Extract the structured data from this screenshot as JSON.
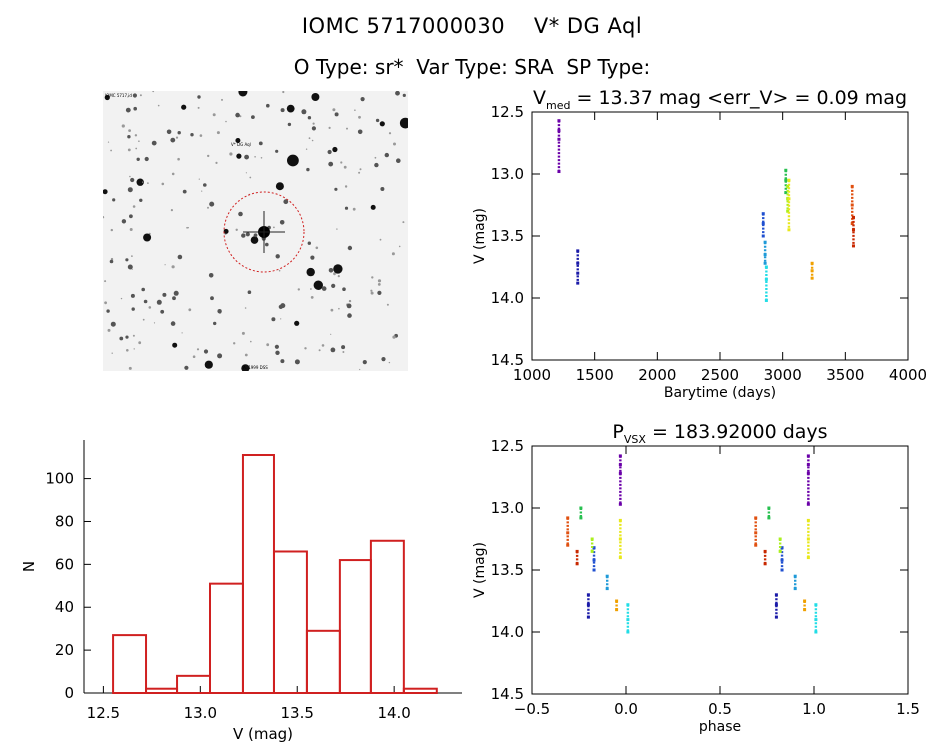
{
  "header": {
    "line1": "IOMC 5717000030    V* DG Aql",
    "line2": "O Type: sr*  Var Type: SRA  SP Type:"
  },
  "finder": {
    "label_tl": "IOMC 5717 id",
    "label_target": "V* DG Aql",
    "label_bottom": "A. 1999 DSS"
  },
  "chart_data": [
    {
      "type": "scatter",
      "title_main": "V",
      "title_sub": "med",
      "title_rest": " = 13.37 mag <err_V> = 0.09 mag",
      "xlabel": "Barytime (days)",
      "ylabel": "V (mag)",
      "xlim": [
        1000,
        4000
      ],
      "ylim": [
        14.5,
        12.5
      ],
      "x_ticks": [
        "1000",
        "1500",
        "2000",
        "2500",
        "3000",
        "3500",
        "4000"
      ],
      "y_ticks": [
        "12.5",
        "13.0",
        "13.5",
        "14.0",
        "14.5"
      ],
      "series": [
        {
          "color": "#6a00a8",
          "x": 1215,
          "y": [
            12.57,
            12.65,
            12.72,
            12.98
          ]
        },
        {
          "color": "#1a1aa8",
          "x": 1365,
          "y": [
            13.62,
            13.72,
            13.8,
            13.88
          ]
        },
        {
          "color": "#2050d0",
          "x": 2845,
          "y": [
            13.32,
            13.4,
            13.5
          ]
        },
        {
          "color": "#1e9ad8",
          "x": 2860,
          "y": [
            13.55,
            13.65,
            13.72
          ]
        },
        {
          "color": "#22dde6",
          "x": 2870,
          "y": [
            13.75,
            13.85,
            14.02
          ]
        },
        {
          "color": "#28c050",
          "x": 3025,
          "y": [
            12.97,
            13.05,
            13.15
          ]
        },
        {
          "color": "#aaf01e",
          "x": 3040,
          "y": [
            13.1,
            13.2,
            13.3
          ]
        },
        {
          "color": "#e8e81a",
          "x": 3050,
          "y": [
            13.05,
            13.2,
            13.45
          ]
        },
        {
          "color": "#f0a000",
          "x": 3235,
          "y": [
            13.72,
            13.78,
            13.84
          ]
        },
        {
          "color": "#e05010",
          "x": 3555,
          "y": [
            13.1,
            13.25,
            13.4
          ]
        },
        {
          "color": "#c82800",
          "x": 3565,
          "y": [
            13.35,
            13.45,
            13.58
          ]
        }
      ]
    },
    {
      "type": "bar",
      "title": "",
      "xlabel": "V (mag)",
      "ylabel": "N",
      "xlim": [
        12.4,
        14.35
      ],
      "ylim": [
        0,
        118
      ],
      "x_ticks": [
        "12.5",
        "13.0",
        "13.5",
        "14.0"
      ],
      "y_ticks": [
        "0",
        "20",
        "40",
        "60",
        "80",
        "100"
      ],
      "bin_edges": [
        12.55,
        12.72,
        12.88,
        13.05,
        13.22,
        13.38,
        13.55,
        13.72,
        13.88,
        14.05,
        14.22
      ],
      "values": [
        27,
        2,
        8,
        51,
        111,
        66,
        29,
        62,
        71,
        2
      ],
      "color": "#d02020"
    },
    {
      "type": "scatter",
      "title_main": "P",
      "title_sub": "VSX",
      "title_rest": " = 183.92000 days",
      "xlabel": "phase",
      "ylabel": "V (mag)",
      "xlim": [
        -0.5,
        1.5
      ],
      "ylim": [
        14.5,
        12.5
      ],
      "x_ticks": [
        "−0.5",
        "0.0",
        "0.5",
        "1.0",
        "1.5"
      ],
      "y_ticks": [
        "12.5",
        "13.0",
        "13.5",
        "14.0",
        "14.5"
      ],
      "series": [
        {
          "color": "#6a00a8",
          "x": -0.03,
          "y": [
            12.58,
            12.65,
            12.72,
            12.97
          ]
        },
        {
          "color": "#1a1aa8",
          "x": -0.2,
          "y": [
            13.7,
            13.78,
            13.88
          ]
        },
        {
          "color": "#2050d0",
          "x": -0.17,
          "y": [
            13.32,
            13.42,
            13.5
          ]
        },
        {
          "color": "#1e9ad8",
          "x": -0.1,
          "y": [
            13.55,
            13.65
          ]
        },
        {
          "color": "#22dde6",
          "x": 0.01,
          "y": [
            13.78,
            13.9,
            14.0
          ]
        },
        {
          "color": "#28c050",
          "x": -0.24,
          "y": [
            13.0,
            13.08
          ]
        },
        {
          "color": "#aaf01e",
          "x": -0.18,
          "y": [
            13.25,
            13.35
          ]
        },
        {
          "color": "#e8e81a",
          "x": -0.03,
          "y": [
            13.1,
            13.25,
            13.4
          ]
        },
        {
          "color": "#f0a000",
          "x": -0.05,
          "y": [
            13.75,
            13.82
          ]
        },
        {
          "color": "#e05010",
          "x": -0.31,
          "y": [
            13.08,
            13.2,
            13.3
          ]
        },
        {
          "color": "#c82800",
          "x": -0.26,
          "y": [
            13.35,
            13.45
          ]
        },
        {
          "color": "#6a00a8",
          "x": 0.97,
          "y": [
            12.58,
            12.65,
            12.72,
            12.97
          ]
        },
        {
          "color": "#1a1aa8",
          "x": 0.8,
          "y": [
            13.7,
            13.78,
            13.88
          ]
        },
        {
          "color": "#2050d0",
          "x": 0.83,
          "y": [
            13.32,
            13.42,
            13.5
          ]
        },
        {
          "color": "#1e9ad8",
          "x": 0.9,
          "y": [
            13.55,
            13.65
          ]
        },
        {
          "color": "#22dde6",
          "x": 1.01,
          "y": [
            13.78,
            13.9,
            14.0
          ]
        },
        {
          "color": "#28c050",
          "x": 0.76,
          "y": [
            13.0,
            13.08
          ]
        },
        {
          "color": "#aaf01e",
          "x": 0.82,
          "y": [
            13.25,
            13.35
          ]
        },
        {
          "color": "#e8e81a",
          "x": 0.97,
          "y": [
            13.1,
            13.25,
            13.4
          ]
        },
        {
          "color": "#f0a000",
          "x": 0.95,
          "y": [
            13.75,
            13.82
          ]
        },
        {
          "color": "#e05010",
          "x": 0.69,
          "y": [
            13.08,
            13.2,
            13.3
          ]
        },
        {
          "color": "#c82800",
          "x": 0.74,
          "y": [
            13.35,
            13.45
          ]
        }
      ]
    }
  ]
}
